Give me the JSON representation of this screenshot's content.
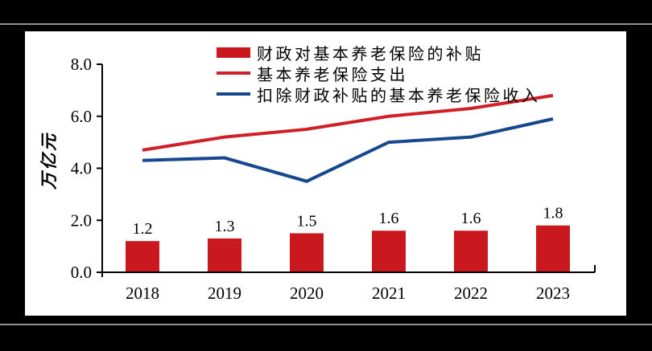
{
  "frame": {
    "background": "#000000",
    "rule_color": "#8f8f8f",
    "panel_background": "#ffffff"
  },
  "chart_data": {
    "type": "bar+line",
    "categories": [
      "2018",
      "2019",
      "2020",
      "2021",
      "2022",
      "2023"
    ],
    "series": [
      {
        "name": "财政对基本养老保险的补贴",
        "type": "bar",
        "color": "#C9191F",
        "values": [
          1.2,
          1.3,
          1.5,
          1.6,
          1.6,
          1.8
        ],
        "labels": [
          "1.2",
          "1.3",
          "1.5",
          "1.6",
          "1.6",
          "1.8"
        ]
      },
      {
        "name": "基本养老保险支出",
        "type": "line",
        "color": "#D01F27",
        "values": [
          4.7,
          5.2,
          5.5,
          6.0,
          6.3,
          6.8
        ]
      },
      {
        "name": "扣除财政补贴的基本养老保险收入",
        "type": "line",
        "color": "#17478F",
        "values": [
          4.3,
          4.4,
          3.5,
          5.0,
          5.2,
          5.9
        ]
      }
    ],
    "ylabel": "万亿元",
    "ylim": [
      0,
      8
    ],
    "ytick_step": 2,
    "ytick_labels": [
      "0.0",
      "2.0",
      "4.0",
      "6.0",
      "8.0"
    ],
    "grid": false,
    "legend_position": "top-center"
  }
}
